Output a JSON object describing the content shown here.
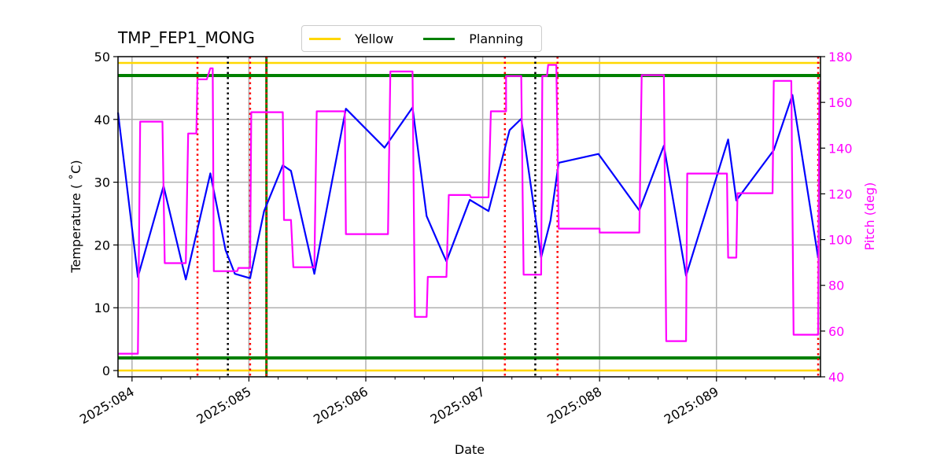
{
  "title": "TMP_FEP1_MONG",
  "legend": {
    "items": [
      {
        "label": "Yellow",
        "color": "#ffd700"
      },
      {
        "label": "Planning",
        "color": "#008000"
      }
    ]
  },
  "colors": {
    "temperature": "#0000ff",
    "pitch": "#ff00ff",
    "yellow": "#ffd700",
    "planning": "#008000",
    "red_marker": "#ff0000",
    "black_marker": "#000000",
    "grid": "#b0b0b0"
  },
  "chart_data": {
    "type": "line",
    "title": "TMP_FEP1_MONG",
    "xlabel": "Date",
    "ylabel": "Temperature ($^\\circ$C)",
    "ylabel_display": "Temperature ( ˚C)",
    "y2label": "Pitch (deg)",
    "xlim": [
      83.88,
      89.89
    ],
    "ylim": [
      -1,
      50
    ],
    "y2lim": [
      40,
      180
    ],
    "x_ticks": [
      {
        "value": 84,
        "label": "2025:084"
      },
      {
        "value": 85,
        "label": "2025:085"
      },
      {
        "value": 86,
        "label": "2025:086"
      },
      {
        "value": 87,
        "label": "2025:087"
      },
      {
        "value": 88,
        "label": "2025:088"
      },
      {
        "value": 89,
        "label": "2025:089"
      }
    ],
    "y_ticks": [
      0,
      10,
      20,
      30,
      40,
      50
    ],
    "y2_ticks": [
      40,
      60,
      80,
      100,
      120,
      140,
      160,
      180
    ],
    "grid": true,
    "hlines": [
      {
        "name": "Yellow high",
        "y": 49,
        "color": "#ffd700"
      },
      {
        "name": "Yellow low",
        "y": 0,
        "color": "#ffd700"
      },
      {
        "name": "Planning high",
        "y": 47,
        "color": "#008000"
      },
      {
        "name": "Planning low",
        "y": 2,
        "color": "#008000"
      }
    ],
    "vlines": [
      {
        "x": 84.56,
        "color": "#ff0000",
        "style": "dotted"
      },
      {
        "x": 84.82,
        "color": "#000000",
        "style": "dotted"
      },
      {
        "x": 85.01,
        "color": "#ff0000",
        "style": "dotted"
      },
      {
        "x": 85.15,
        "color": "#008000",
        "style": "solid"
      },
      {
        "x": 85.15,
        "color": "#ff0000",
        "style": "dotted"
      },
      {
        "x": 87.19,
        "color": "#ff0000",
        "style": "dotted"
      },
      {
        "x": 87.45,
        "color": "#000000",
        "style": "dotted"
      },
      {
        "x": 87.64,
        "color": "#ff0000",
        "style": "dotted"
      },
      {
        "x": 89.87,
        "color": "#ff0000",
        "style": "dotted"
      }
    ],
    "series": [
      {
        "name": "Temperature",
        "axis": "left",
        "color": "#0000ff",
        "x": [
          83.88,
          84.05,
          84.27,
          84.46,
          84.67,
          84.8,
          84.88,
          85.01,
          85.13,
          85.29,
          85.36,
          85.56,
          85.83,
          86.16,
          86.4,
          86.52,
          86.66,
          86.69,
          86.89,
          87.05,
          87.23,
          87.33,
          87.5,
          87.58,
          87.65,
          87.99,
          88.34,
          88.55,
          88.74,
          89.1,
          89.17,
          89.49,
          89.65,
          89.87
        ],
        "y": [
          41.1,
          14.9,
          29.4,
          14.5,
          31.4,
          19.2,
          15.4,
          14.7,
          25.4,
          32.7,
          31.8,
          15.4,
          41.7,
          35.5,
          41.9,
          24.6,
          18.6,
          17.4,
          27.2,
          25.4,
          38.3,
          40.1,
          18.0,
          23.9,
          33.1,
          34.5,
          25.5,
          35.8,
          15.1,
          36.8,
          27.1,
          35.1,
          43.9,
          18.0
        ]
      },
      {
        "name": "Pitch",
        "axis": "right",
        "color": "#ff00ff",
        "x": [
          83.88,
          84.05,
          84.07,
          84.26,
          84.28,
          84.46,
          84.48,
          84.55,
          84.56,
          84.64,
          84.67,
          84.69,
          84.7,
          84.9,
          84.91,
          85.01,
          85.02,
          85.29,
          85.3,
          85.36,
          85.38,
          85.56,
          85.58,
          85.82,
          85.83,
          86.19,
          86.21,
          86.4,
          86.42,
          86.52,
          86.53,
          86.69,
          86.71,
          86.89,
          86.9,
          87.05,
          87.07,
          87.2,
          87.2,
          87.33,
          87.35,
          87.5,
          87.51,
          87.55,
          87.56,
          87.63,
          87.65,
          88.0,
          88.0,
          88.34,
          88.36,
          88.55,
          88.57,
          88.74,
          88.75,
          89.09,
          89.1,
          89.17,
          89.18,
          89.48,
          89.49,
          89.64,
          89.66,
          89.87,
          89.88
        ],
        "y": [
          50.1,
          50.1,
          151.6,
          151.6,
          89.7,
          89.7,
          146.4,
          146.4,
          170.1,
          170.1,
          174.9,
          174.9,
          86.2,
          86.2,
          87.6,
          87.6,
          155.7,
          155.7,
          108.6,
          108.6,
          87.9,
          87.9,
          156.1,
          156.1,
          102.4,
          102.4,
          173.5,
          173.5,
          66.2,
          66.2,
          83.7,
          83.7,
          119.5,
          119.5,
          118.5,
          118.5,
          156.1,
          156.1,
          171.5,
          171.5,
          84.7,
          84.7,
          171.5,
          171.5,
          176.4,
          176.4,
          104.8,
          104.8,
          103.1,
          103.1,
          171.9,
          171.9,
          55.6,
          55.6,
          128.9,
          128.9,
          92.1,
          92.1,
          120.3,
          120.3,
          169.4,
          169.4,
          58.4,
          58.4,
          169.4
        ]
      }
    ]
  }
}
